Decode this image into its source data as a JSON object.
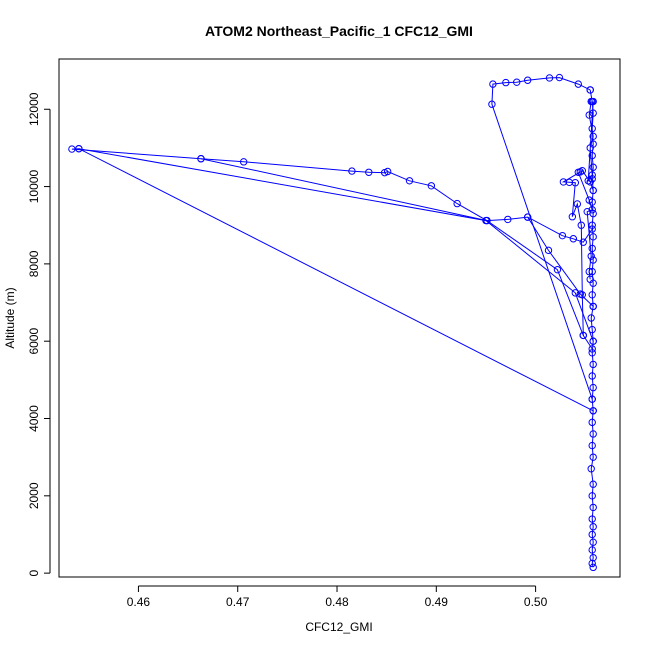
{
  "chart_data": {
    "type": "line",
    "title": "ATOM2 Northeast_Pacific_1 CFC12_GMI",
    "xlabel": "CFC12_GMI",
    "ylabel": "Altitude (m)",
    "xlim": [
      0.452,
      0.5085
    ],
    "ylim": [
      -100,
      13300
    ],
    "xticks": [
      0.46,
      0.47,
      0.48,
      0.49,
      0.5
    ],
    "xtick_labels": [
      "0.46",
      "0.47",
      "0.48",
      "0.49",
      "0.50"
    ],
    "yticks": [
      0,
      2000,
      4000,
      6000,
      8000,
      10000,
      12000
    ],
    "ytick_labels": [
      "0",
      "2000",
      "4000",
      "6000",
      "8000",
      "10000",
      "12000"
    ],
    "grid": false,
    "line_style": "lines with open circle markers",
    "color": "#0000ff",
    "series": [
      {
        "points": [
          [
            0.5058,
            150
          ],
          [
            0.5057,
            250
          ],
          [
            0.5058,
            400
          ],
          [
            0.5057,
            600
          ],
          [
            0.5058,
            800
          ],
          [
            0.5057,
            1000
          ],
          [
            0.5058,
            1200
          ],
          [
            0.5057,
            1400
          ],
          [
            0.5058,
            1700
          ],
          [
            0.5057,
            2000
          ],
          [
            0.5058,
            2300
          ],
          [
            0.5056,
            2700
          ],
          [
            0.5058,
            3000
          ],
          [
            0.5057,
            3300
          ],
          [
            0.5058,
            3600
          ],
          [
            0.5057,
            3900
          ],
          [
            0.5058,
            4200
          ],
          [
            0.5057,
            4500
          ],
          [
            0.5058,
            4800
          ],
          [
            0.5057,
            5100
          ],
          [
            0.5058,
            5400
          ],
          [
            0.5057,
            5700
          ],
          [
            0.5058,
            6000
          ],
          [
            0.5057,
            6300
          ],
          [
            0.5056,
            6600
          ],
          [
            0.5058,
            6900
          ],
          [
            0.5057,
            7200
          ],
          [
            0.5058,
            7500
          ],
          [
            0.5057,
            7800
          ],
          [
            0.5058,
            8100
          ],
          [
            0.5057,
            8400
          ],
          [
            0.5058,
            8700
          ],
          [
            0.5057,
            9000
          ],
          [
            0.5058,
            9300
          ],
          [
            0.5057,
            9600
          ],
          [
            0.5058,
            9900
          ],
          [
            0.5057,
            10200
          ],
          [
            0.5058,
            10500
          ],
          [
            0.5057,
            10800
          ],
          [
            0.5058,
            11100
          ],
          [
            0.5057,
            11500
          ],
          [
            0.5058,
            11900
          ],
          [
            0.5057,
            12200
          ],
          [
            0.5055,
            12500
          ]
        ]
      },
      {
        "points": [
          [
            0.5055,
            12500
          ],
          [
            0.5043,
            12650
          ],
          [
            0.5024,
            12820
          ],
          [
            0.5014,
            12810
          ],
          [
            0.4992,
            12750
          ],
          [
            0.4981,
            12700
          ],
          [
            0.497,
            12690
          ],
          [
            0.4957,
            12650
          ],
          [
            0.4956,
            12130
          ],
          [
            0.5057,
            4500
          ]
        ]
      },
      {
        "points": [
          [
            0.5058,
            4200
          ],
          [
            0.454,
            10980
          ],
          [
            0.4533,
            10970
          ],
          [
            0.4663,
            10720
          ],
          [
            0.4706,
            10640
          ],
          [
            0.4815,
            10400
          ],
          [
            0.4832,
            10370
          ],
          [
            0.4848,
            10360
          ],
          [
            0.4851,
            10390
          ],
          [
            0.4873,
            10150
          ],
          [
            0.4895,
            10020
          ],
          [
            0.4921,
            9560
          ],
          [
            0.4951,
            9120
          ],
          [
            0.4972,
            9150
          ],
          [
            0.4992,
            9210
          ],
          [
            0.5027,
            8730
          ],
          [
            0.5038,
            8650
          ],
          [
            0.5048,
            8560
          ],
          [
            0.5057,
            8900
          ]
        ]
      },
      {
        "points": [
          [
            0.454,
            10980
          ],
          [
            0.495,
            9120
          ],
          [
            0.504,
            7250
          ],
          [
            0.5058,
            6000
          ]
        ]
      },
      {
        "points": [
          [
            0.4663,
            10720
          ],
          [
            0.4951,
            9120
          ],
          [
            0.5022,
            7850
          ],
          [
            0.5048,
            6150
          ],
          [
            0.5057,
            5800
          ]
        ]
      },
      {
        "points": [
          [
            0.4992,
            9210
          ],
          [
            0.5013,
            8350
          ],
          [
            0.5045,
            7220
          ],
          [
            0.5058,
            6900
          ]
        ]
      },
      {
        "points": [
          [
            0.5048,
            6150
          ],
          [
            0.5047,
            7200
          ],
          [
            0.5046,
            9000
          ],
          [
            0.5042,
            9550
          ],
          [
            0.5037,
            9220
          ],
          [
            0.504,
            10100
          ],
          [
            0.5034,
            10110
          ],
          [
            0.5028,
            10120
          ],
          [
            0.5045,
            10380
          ],
          [
            0.5047,
            10410
          ],
          [
            0.5055,
            10120
          ],
          [
            0.5058,
            9900
          ]
        ]
      },
      {
        "points": [
          [
            0.5043,
            10370
          ],
          [
            0.5054,
            9650
          ],
          [
            0.5057,
            9400
          ],
          [
            0.5052,
            9350
          ],
          [
            0.5056,
            8200
          ],
          [
            0.5054,
            7800
          ],
          [
            0.5055,
            7600
          ]
        ]
      },
      {
        "points": [
          [
            0.5056,
            12200
          ],
          [
            0.5054,
            11850
          ],
          [
            0.5058,
            11300
          ],
          [
            0.5055,
            11000
          ],
          [
            0.5057,
            10300
          ],
          [
            0.5053,
            10150
          ],
          [
            0.5058,
            12200
          ]
        ]
      }
    ]
  }
}
